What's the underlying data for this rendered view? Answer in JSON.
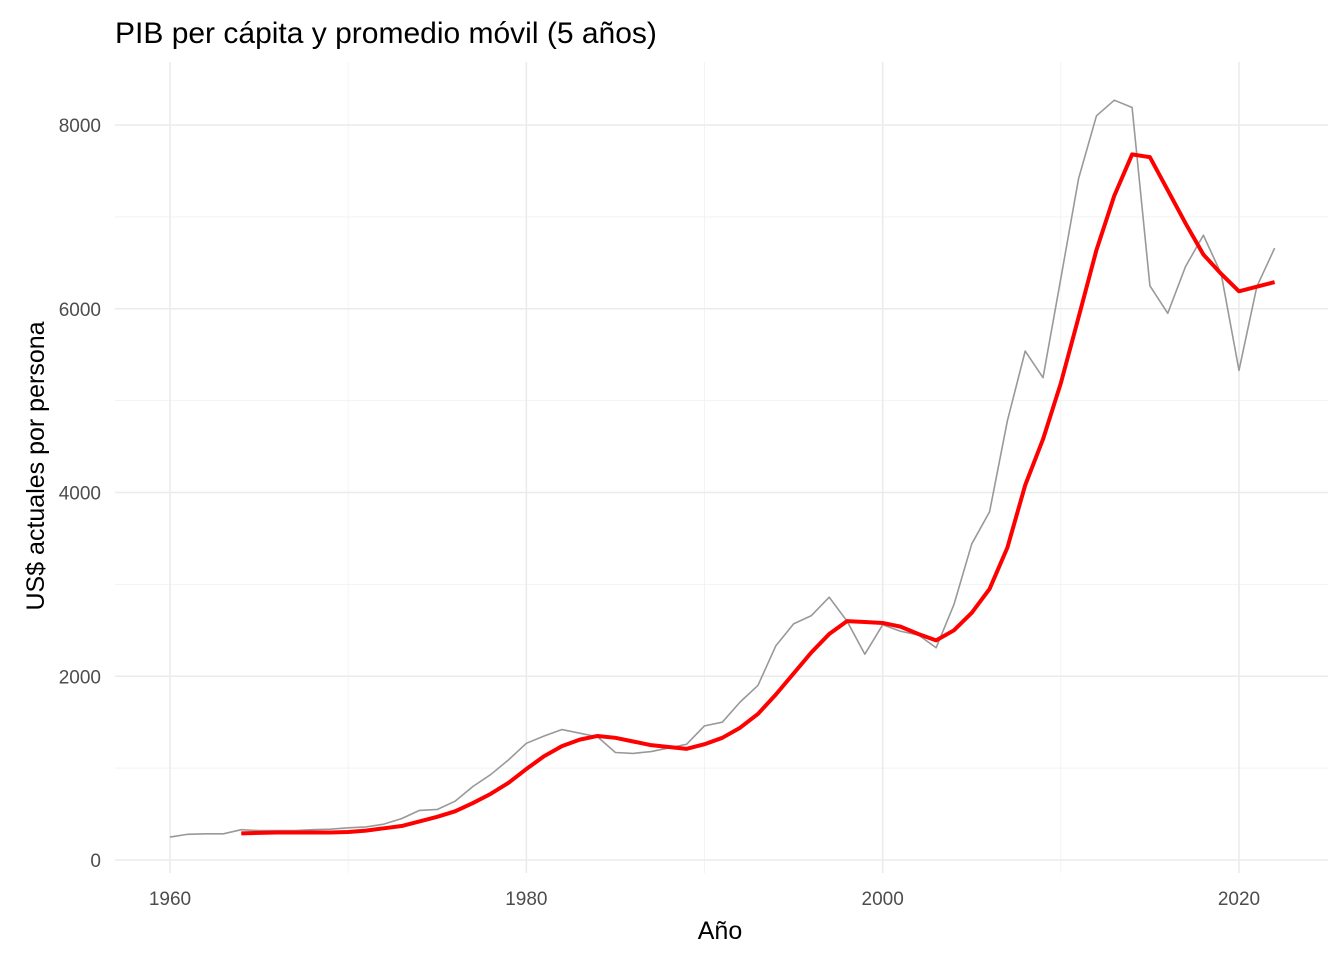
{
  "chart_data": {
    "type": "line",
    "title": "PIB per cápita y promedio móvil (5 años)",
    "xlabel": "Año",
    "ylabel": "US$ actuales por persona",
    "xlim": [
      1960,
      2022
    ],
    "ylim": [
      0,
      8300
    ],
    "x_ticks": [
      1960,
      1980,
      2000,
      2020
    ],
    "y_ticks": [
      0,
      2000,
      4000,
      6000,
      8000
    ],
    "x_tick_labels": [
      "1960",
      "1980",
      "2000",
      "2020"
    ],
    "y_tick_labels": [
      "0",
      "2000",
      "4000",
      "6000",
      "8000"
    ],
    "grid": true,
    "legend": "none",
    "series": [
      {
        "color": "#999999",
        "x": [
          1960,
          1961,
          1962,
          1963,
          1964,
          1965,
          1966,
          1967,
          1968,
          1969,
          1970,
          1971,
          1972,
          1973,
          1974,
          1975,
          1976,
          1977,
          1978,
          1979,
          1980,
          1981,
          1982,
          1983,
          1984,
          1985,
          1986,
          1987,
          1988,
          1989,
          1990,
          1991,
          1992,
          1993,
          1994,
          1995,
          1996,
          1997,
          1998,
          1999,
          2000,
          2001,
          2002,
          2003,
          2004,
          2005,
          2006,
          2007,
          2008,
          2009,
          2010,
          2011,
          2012,
          2013,
          2014,
          2015,
          2016,
          2017,
          2018,
          2019,
          2020,
          2021,
          2022
        ],
        "values": [
          250,
          280,
          285,
          285,
          330,
          320,
          320,
          320,
          330,
          335,
          350,
          360,
          390,
          450,
          540,
          550,
          640,
          800,
          930,
          1090,
          1270,
          1350,
          1420,
          1380,
          1340,
          1170,
          1160,
          1180,
          1220,
          1260,
          1460,
          1500,
          1720,
          1900,
          2330,
          2570,
          2660,
          2860,
          2600,
          2240,
          2560,
          2490,
          2450,
          2310,
          2780,
          3440,
          3790,
          4780,
          5540,
          5250,
          6330,
          7420,
          8100,
          8270,
          8190,
          6250,
          5950,
          6460,
          6800,
          6380,
          5330,
          6240,
          6660
        ]
      },
      {
        "color": "#ff0000",
        "x": [
          1964,
          1965,
          1966,
          1967,
          1968,
          1969,
          1970,
          1971,
          1972,
          1973,
          1974,
          1975,
          1976,
          1977,
          1978,
          1979,
          1980,
          1981,
          1982,
          1983,
          1984,
          1985,
          1986,
          1987,
          1988,
          1989,
          1990,
          1991,
          1992,
          1993,
          1994,
          1995,
          1996,
          1997,
          1998,
          1999,
          2000,
          2001,
          2002,
          2003,
          2004,
          2005,
          2006,
          2007,
          2008,
          2009,
          2010,
          2011,
          2012,
          2013,
          2014,
          2015,
          2016,
          2017,
          2018,
          2019,
          2020,
          2021,
          2022
        ],
        "values": [
          290,
          295,
          300,
          300,
          300,
          300,
          305,
          320,
          345,
          370,
          420,
          470,
          530,
          620,
          720,
          840,
          990,
          1130,
          1240,
          1310,
          1350,
          1330,
          1290,
          1250,
          1230,
          1210,
          1260,
          1330,
          1440,
          1590,
          1800,
          2030,
          2260,
          2460,
          2600,
          2590,
          2580,
          2540,
          2460,
          2390,
          2500,
          2690,
          2950,
          3400,
          4080,
          4580,
          5190,
          5910,
          6640,
          7230,
          7680,
          7650,
          7290,
          6930,
          6590,
          6380,
          6190,
          6240,
          6290
        ]
      }
    ]
  }
}
